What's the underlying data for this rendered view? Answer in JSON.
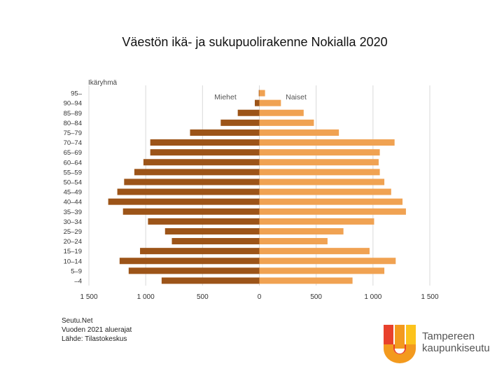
{
  "page": {
    "title": "Väestön ikä- ja sukupuolirakenne Nokialla 2020",
    "source_lines": [
      "Seutu.Net",
      "Vuoden 2021 aluerajat",
      "Lähde: Tilastokeskus"
    ],
    "logo": {
      "lines": [
        "Tampereen",
        "kaupunkiseutu"
      ]
    }
  },
  "colors": {
    "male": "#9c5418",
    "female": "#f0a252",
    "grid": "#d9d9d9"
  },
  "chart_data": {
    "type": "bar",
    "orientation": "horizontal",
    "title": "",
    "ylabel": "Ikäryhmä",
    "xlim": [
      -1500,
      1500
    ],
    "xticks": [
      -1500,
      -1000,
      -500,
      0,
      500,
      1000,
      1500
    ],
    "xtick_labels": [
      "1 500",
      "1 000",
      "500",
      "0",
      "500",
      "1 000",
      "1 500"
    ],
    "grid": true,
    "categories": [
      "95–",
      "90–94",
      "85–89",
      "80–84",
      "75–79",
      "70–74",
      "65–69",
      "60–64",
      "55–59",
      "50–54",
      "45–49",
      "40–44",
      "35–39",
      "30–34",
      "25–29",
      "20–24",
      "15–19",
      "10–14",
      "5–9",
      "–4"
    ],
    "series": [
      {
        "name": "Miehet",
        "values": [
          5,
          40,
          190,
          340,
          610,
          960,
          960,
          1020,
          1100,
          1190,
          1250,
          1330,
          1200,
          980,
          830,
          770,
          1050,
          1230,
          1150,
          860
        ]
      },
      {
        "name": "Naiset",
        "values": [
          50,
          190,
          390,
          480,
          700,
          1190,
          1060,
          1050,
          1060,
          1100,
          1160,
          1260,
          1290,
          1010,
          740,
          600,
          970,
          1200,
          1100,
          820
        ]
      }
    ]
  }
}
